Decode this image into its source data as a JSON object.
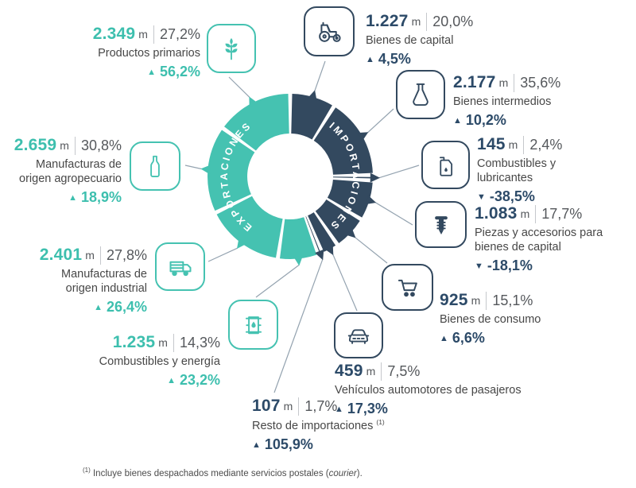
{
  "palette": {
    "teal": "#45c2b1",
    "navy": "#33495f",
    "muted_text": "#55585c",
    "label_text": "#474747",
    "connector": "#94a3b0"
  },
  "icons": {
    "productos_primarios": "wheat",
    "manufacturas_agropecuario": "bottle",
    "manufacturas_industrial": "truck",
    "combustibles_energia": "oil-barrel",
    "bienes_de_capital": "tractor",
    "bienes_intermedios": "flask",
    "combustibles_lubricantes": "oil-can",
    "piezas_accesorios": "screw",
    "bienes_de_consumo": "shopping-cart",
    "vehiculos_pasajeros": "car"
  },
  "chart_data": {
    "type": "donut",
    "unit": "m",
    "groups": [
      {
        "name": "EXPORTACIONES",
        "color": "#45c2b1",
        "angle_deg": 200,
        "start_angle": 360,
        "dir": -1,
        "label_arc": [
          205,
          335
        ],
        "segments": [
          {
            "label": "Productos primarios",
            "value_m": "2.349",
            "unit": "m",
            "share_pct": "27,2%",
            "change_pct": "56,2%",
            "trend": "up"
          },
          {
            "label": "Manufacturas de origen agropecuario",
            "value_m": "2.659",
            "unit": "m",
            "share_pct": "30,8%",
            "change_pct": "18,9%",
            "trend": "up"
          },
          {
            "label": "Manufacturas de origen industrial",
            "value_m": "2.401",
            "unit": "m",
            "share_pct": "27,8%",
            "change_pct": "26,4%",
            "trend": "up"
          },
          {
            "label": "Combustibles y energía",
            "value_m": "1.235",
            "unit": "m",
            "share_pct": "14,3%",
            "change_pct": "23,2%",
            "trend": "up"
          }
        ]
      },
      {
        "name": "IMPORTACIONES",
        "color": "#33495f",
        "angle_deg": 160,
        "start_angle": 0,
        "dir": 1,
        "label_arc": [
          25,
          155
        ],
        "segments": [
          {
            "label": "Bienes de capital",
            "value_m": "1.227",
            "unit": "m",
            "share_pct": "20,0%",
            "change_pct": "4,5%",
            "trend": "up"
          },
          {
            "label": "Bienes intermedios",
            "value_m": "2.177",
            "unit": "m",
            "share_pct": "35,6%",
            "change_pct": "10,2%",
            "trend": "up"
          },
          {
            "label": "Combustibles y lubricantes",
            "value_m": "145",
            "unit": "m",
            "share_pct": "2,4%",
            "change_pct": "-38,5%",
            "trend": "down"
          },
          {
            "label": "Piezas y accesorios para bienes de capital",
            "value_m": "1.083",
            "unit": "m",
            "share_pct": "17,7%",
            "change_pct": "-18,1%",
            "trend": "down"
          },
          {
            "label": "Bienes de consumo",
            "value_m": "925",
            "unit": "m",
            "share_pct": "15,1%",
            "change_pct": "6,6%",
            "trend": "up"
          },
          {
            "label": "Vehículos automotores de pasajeros",
            "value_m": "459",
            "unit": "m",
            "share_pct": "7,5%",
            "change_pct": "17,3%",
            "trend": "up"
          },
          {
            "label": "Resto de importaciones",
            "note_ref": "(1)",
            "value_m": "107",
            "unit": "m",
            "share_pct": "1,7%",
            "change_pct": "105,9%",
            "trend": "up"
          }
        ]
      }
    ]
  },
  "footnote": {
    "marker": "(1)",
    "text_before_italic": "Incluye bienes despachados mediante servicios postales (",
    "italic": "courier",
    "text_after_italic": ")."
  }
}
